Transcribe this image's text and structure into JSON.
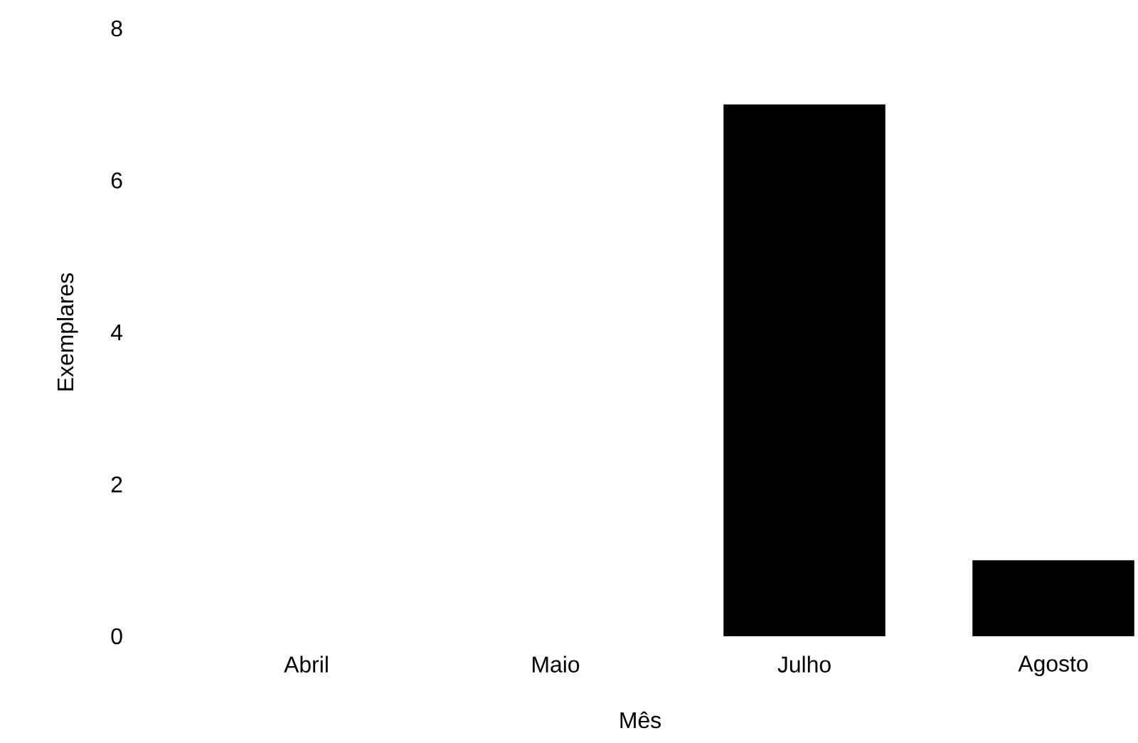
{
  "chart_data": {
    "type": "bar",
    "xlabel": "Mês",
    "ylabel": "Exemplares",
    "categories": [
      "Abril",
      "Maio",
      "Julho",
      "Agosto"
    ],
    "values": [
      0,
      0,
      7,
      1
    ],
    "color": "#000000",
    "ylim": [
      0,
      8
    ],
    "yticks": [
      0,
      2,
      4,
      6,
      8
    ]
  }
}
